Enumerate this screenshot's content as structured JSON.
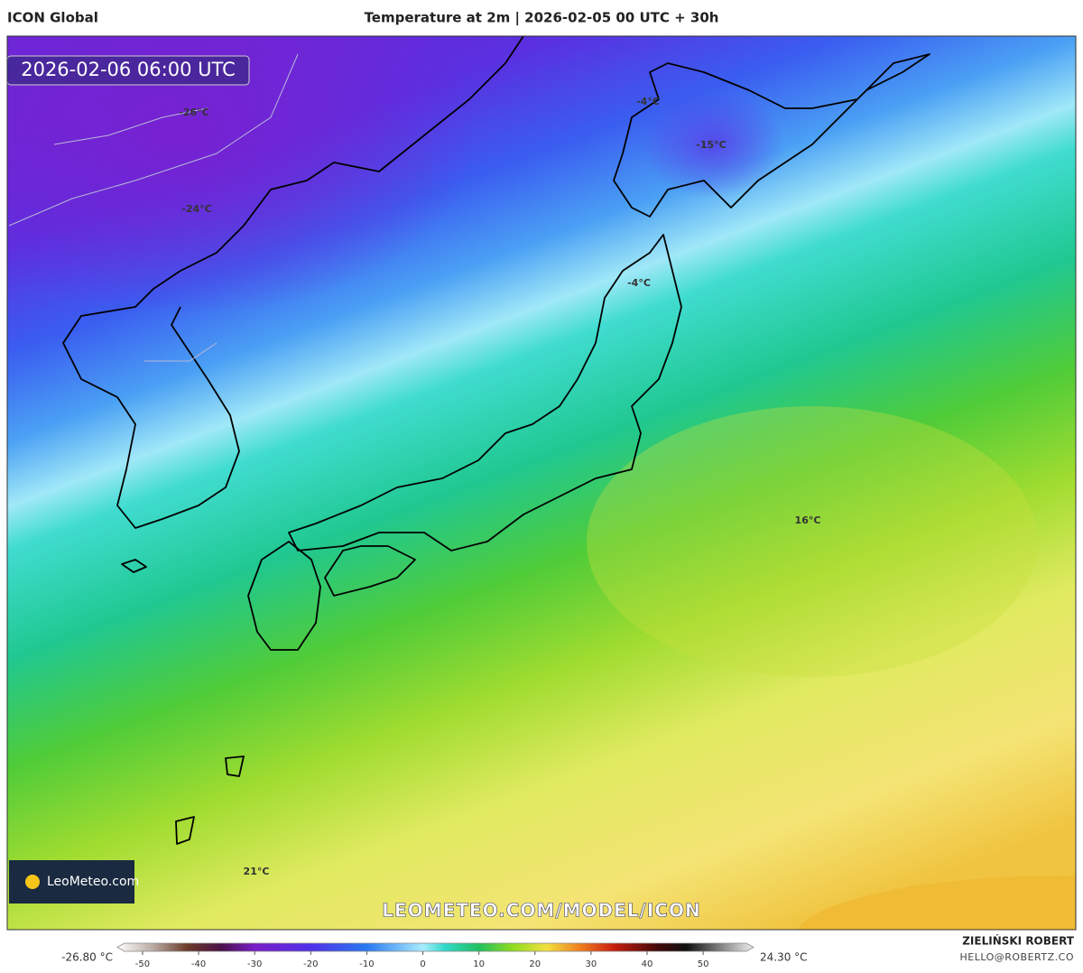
{
  "header": {
    "model": "ICON Global",
    "title": "Temperature at 2m | 2026-02-05 00 UTC + 30h"
  },
  "map": {
    "valid_time": "2026-02-06 06:00 UTC",
    "labels": [
      "-26°C",
      "-24°C",
      "-4°C",
      "-15°C",
      "-4°C",
      "16°C",
      "21°C"
    ],
    "watermark": "LEOMETEO.COM/MODEL/ICON",
    "logo": "LeoMeteo.com"
  },
  "colorbar": {
    "min_label": "-26.80 °C",
    "max_label": "24.30 °C",
    "lim": [
      -54.5,
      59
    ],
    "ticks": [
      -50,
      -40,
      -30,
      -20,
      -10,
      0,
      10,
      20,
      30,
      40,
      50
    ],
    "stops": [
      {
        "value": -54.5,
        "color": "#ffffff"
      },
      {
        "value": -48,
        "color": "#b8a8a0"
      },
      {
        "value": -42,
        "color": "#6b3a28"
      },
      {
        "value": -36,
        "color": "#4a1048"
      },
      {
        "value": -30,
        "color": "#7a1ec8"
      },
      {
        "value": -20,
        "color": "#5030e8"
      },
      {
        "value": -10,
        "color": "#2a7af0"
      },
      {
        "value": 0,
        "color": "#a8ecff"
      },
      {
        "value": 4,
        "color": "#30d8c8"
      },
      {
        "value": 10,
        "color": "#20c060"
      },
      {
        "value": 16,
        "color": "#90dc20"
      },
      {
        "value": 22,
        "color": "#f0e040"
      },
      {
        "value": 28,
        "color": "#f08020"
      },
      {
        "value": 34,
        "color": "#c81e10"
      },
      {
        "value": 42,
        "color": "#400808"
      },
      {
        "value": 47,
        "color": "#101010"
      },
      {
        "value": 59,
        "color": "#f0f0f0"
      }
    ]
  },
  "footer": {
    "author": "ZIELIŃSKI ROBERT",
    "email": "HELLO@ROBERTZ.CO"
  }
}
